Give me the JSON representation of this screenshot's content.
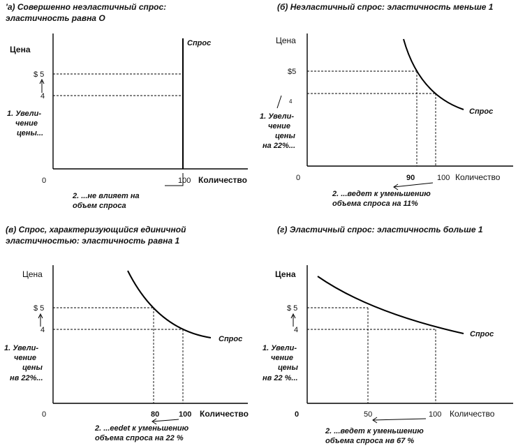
{
  "panels": [
    {
      "title": [
        "'а) Совершенно неэластичный спрос:",
        "эластичность равна О"
      ],
      "y_axis_label": "Цена",
      "x_axis_label": "Количество",
      "origin": "0",
      "y_ticks": [
        "$ 5",
        "4"
      ],
      "x_ticks": [
        "100"
      ],
      "demand_label": "Спрос",
      "price_note": [
        "1. Увели-",
        "чение",
        "цены..."
      ],
      "quantity_note": [
        "2. ...не влияет на",
        "объем спроса"
      ]
    },
    {
      "title": [
        "(б) Неэластичный спрос: эластичность меньше 1"
      ],
      "y_axis_label": "Цена",
      "x_axis_label": "Количество",
      "origin": "0",
      "y_ticks": [
        "$5",
        "4"
      ],
      "x_ticks": [
        "90",
        "100"
      ],
      "demand_label": "Спрос",
      "price_note": [
        "1. Увели-",
        "чение",
        "цены",
        "на 22%..."
      ],
      "quantity_note": [
        "2. ...ведет к уменьшению",
        "объема спроса на 11%"
      ]
    },
    {
      "title": [
        "(в) Спрос, характеризующийся единичной",
        "эластичностью: эластичность равна 1"
      ],
      "y_axis_label": "Цена",
      "x_axis_label": "Количество",
      "origin": "0",
      "y_ticks": [
        "$ 5",
        "4"
      ],
      "x_ticks": [
        "80",
        "100"
      ],
      "demand_label": "Спрос",
      "price_note": [
        "1. Увели-",
        "чение",
        "цены",
        "нв 22%..."
      ],
      "quantity_note": [
        "2. ...eedet к уменьшению",
        "объема спроса на 22 %"
      ]
    },
    {
      "title": [
        "(г) Эластичный спрос: эластичность больше 1"
      ],
      "y_axis_label": "Цена",
      "x_axis_label": "Количество",
      "origin": "0",
      "y_ticks": [
        "$ 5",
        "4"
      ],
      "x_ticks": [
        "50",
        "100"
      ],
      "demand_label": "Спрос",
      "price_note": [
        "1. Увели-",
        "чение",
        "цены",
        "нв 22 %..."
      ],
      "quantity_note": [
        "2. ...ведет к уменьшению",
        "объема спроса нв 67 %"
      ]
    }
  ]
}
